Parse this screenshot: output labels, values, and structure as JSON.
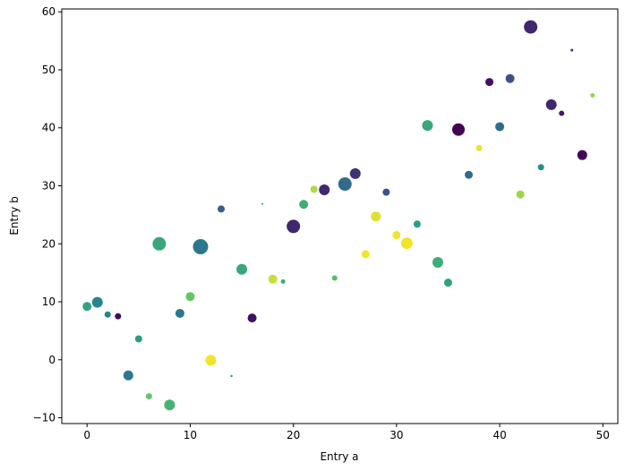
{
  "chart_data": {
    "type": "scatter",
    "title": "",
    "xlabel": "Entry a",
    "ylabel": "Entry b",
    "xlim": [
      -2.45,
      51.45
    ],
    "ylim": [
      -11.0,
      60.5
    ],
    "xticks": [
      0,
      10,
      20,
      30,
      40,
      50
    ],
    "yticks": [
      -10,
      0,
      10,
      20,
      30,
      40,
      50,
      60
    ],
    "grid": false,
    "colormap": [
      "#440154",
      "#3b528b",
      "#21918c",
      "#5ec962",
      "#fde725"
    ],
    "points": [
      {
        "x": 0,
        "y": 9.2,
        "c": 0.58,
        "s": 10.0
      },
      {
        "x": 1,
        "y": 9.9,
        "c": 0.45,
        "s": 12.0
      },
      {
        "x": 2,
        "y": 7.8,
        "c": 0.45,
        "s": 7.0
      },
      {
        "x": 3,
        "y": 7.5,
        "c": 0.02,
        "s": 7.0
      },
      {
        "x": 4,
        "y": -2.7,
        "c": 0.4,
        "s": 11.0
      },
      {
        "x": 5,
        "y": 3.6,
        "c": 0.55,
        "s": 8.0
      },
      {
        "x": 6,
        "y": -6.3,
        "c": 0.75,
        "s": 7.0
      },
      {
        "x": 7,
        "y": 20.0,
        "c": 0.6,
        "s": 15.0
      },
      {
        "x": 8,
        "y": -7.8,
        "c": 0.65,
        "s": 12.0
      },
      {
        "x": 9,
        "y": 8.0,
        "c": 0.4,
        "s": 10.0
      },
      {
        "x": 10,
        "y": 10.9,
        "c": 0.75,
        "s": 10.0
      },
      {
        "x": 11,
        "y": 19.5,
        "c": 0.4,
        "s": 17.0
      },
      {
        "x": 12,
        "y": -0.1,
        "c": 0.98,
        "s": 12.0
      },
      {
        "x": 13,
        "y": 26.0,
        "c": 0.3,
        "s": 8.0
      },
      {
        "x": 14,
        "y": -2.8,
        "c": 0.55,
        "s": 2.5
      },
      {
        "x": 15,
        "y": 15.6,
        "c": 0.6,
        "s": 12.0
      },
      {
        "x": 16,
        "y": 7.2,
        "c": 0.05,
        "s": 10.0
      },
      {
        "x": 17,
        "y": 26.9,
        "c": 0.55,
        "s": 2.0
      },
      {
        "x": 18,
        "y": 13.9,
        "c": 0.92,
        "s": 10.0
      },
      {
        "x": 19,
        "y": 13.5,
        "c": 0.62,
        "s": 5.0
      },
      {
        "x": 20,
        "y": 23.0,
        "c": 0.12,
        "s": 15.0
      },
      {
        "x": 21,
        "y": 26.8,
        "c": 0.62,
        "s": 10.0
      },
      {
        "x": 22,
        "y": 29.4,
        "c": 0.88,
        "s": 8.0
      },
      {
        "x": 23,
        "y": 29.3,
        "c": 0.12,
        "s": 12.0
      },
      {
        "x": 24,
        "y": 14.1,
        "c": 0.7,
        "s": 6.0
      },
      {
        "x": 25,
        "y": 30.3,
        "c": 0.35,
        "s": 15.0
      },
      {
        "x": 26,
        "y": 32.1,
        "c": 0.15,
        "s": 12.0
      },
      {
        "x": 27,
        "y": 18.2,
        "c": 0.98,
        "s": 9.0
      },
      {
        "x": 28,
        "y": 24.7,
        "c": 0.95,
        "s": 11.0
      },
      {
        "x": 29,
        "y": 28.9,
        "c": 0.25,
        "s": 8.0
      },
      {
        "x": 30,
        "y": 21.5,
        "c": 0.98,
        "s": 9.0
      },
      {
        "x": 31,
        "y": 20.1,
        "c": 0.98,
        "s": 13.0
      },
      {
        "x": 32,
        "y": 23.4,
        "c": 0.55,
        "s": 8.0
      },
      {
        "x": 33,
        "y": 40.4,
        "c": 0.6,
        "s": 12.0
      },
      {
        "x": 34,
        "y": 16.8,
        "c": 0.62,
        "s": 12.0
      },
      {
        "x": 35,
        "y": 13.3,
        "c": 0.57,
        "s": 9.0
      },
      {
        "x": 36,
        "y": 39.7,
        "c": 0.0,
        "s": 14.0
      },
      {
        "x": 37,
        "y": 31.9,
        "c": 0.35,
        "s": 9.0
      },
      {
        "x": 38,
        "y": 36.5,
        "c": 0.97,
        "s": 7.0
      },
      {
        "x": 39,
        "y": 47.9,
        "c": 0.05,
        "s": 9.0
      },
      {
        "x": 40,
        "y": 40.2,
        "c": 0.35,
        "s": 10.0
      },
      {
        "x": 41,
        "y": 48.5,
        "c": 0.25,
        "s": 10.0
      },
      {
        "x": 42,
        "y": 28.5,
        "c": 0.85,
        "s": 9.0
      },
      {
        "x": 43,
        "y": 57.4,
        "c": 0.12,
        "s": 15.0
      },
      {
        "x": 44,
        "y": 33.2,
        "c": 0.5,
        "s": 7.0
      },
      {
        "x": 45,
        "y": 44.0,
        "c": 0.12,
        "s": 12.0
      },
      {
        "x": 46,
        "y": 42.5,
        "c": 0.08,
        "s": 6.0
      },
      {
        "x": 47,
        "y": 53.4,
        "c": 0.12,
        "s": 3.0
      },
      {
        "x": 48,
        "y": 35.3,
        "c": 0.02,
        "s": 11.0
      },
      {
        "x": 49,
        "y": 45.6,
        "c": 0.83,
        "s": 5.0
      }
    ]
  }
}
